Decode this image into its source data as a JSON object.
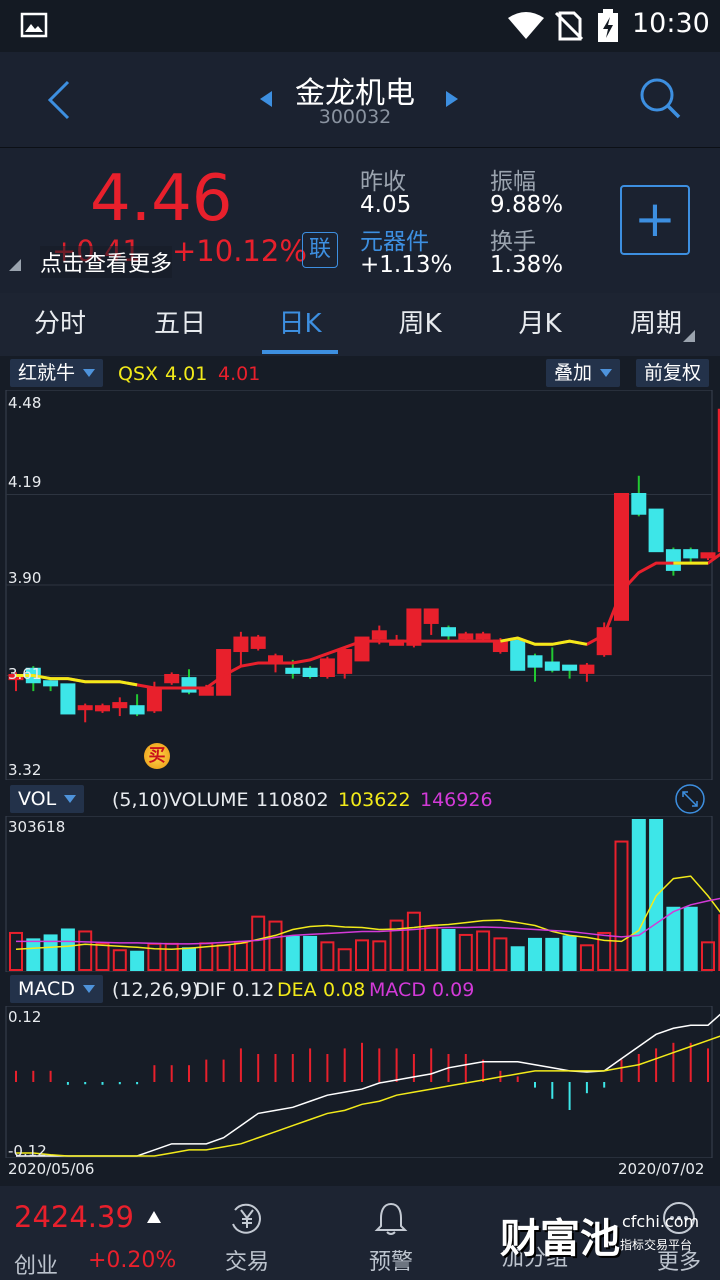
{
  "status": {
    "time": "10:30"
  },
  "header": {
    "title": "金龙机电",
    "code": "300032"
  },
  "quote": {
    "price": "4.46",
    "change": "+0.41",
    "change_pct": "+10.12%",
    "more_tip": "点击查看更多",
    "link_badge": "联",
    "prev_close_label": "昨收",
    "prev_close": "4.05",
    "sector_label": "元器件",
    "sector_change": "+1.13%",
    "amplitude_label": "振幅",
    "amplitude": "9.88%",
    "turnover_label": "换手",
    "turnover": "1.38%",
    "add_symbol": "+"
  },
  "tabs": [
    {
      "label": "分时"
    },
    {
      "label": "五日"
    },
    {
      "label": "日K"
    },
    {
      "label": "周K"
    },
    {
      "label": "月K"
    },
    {
      "label": "周期"
    }
  ],
  "kline_bar": {
    "indicator": "红就牛",
    "qsx_label": "QSX",
    "qsx_value1": "4.01",
    "qsx_value2": "4.01",
    "overlay": "叠加",
    "adjust": "前复权"
  },
  "price_axis": [
    "4.48",
    "4.19",
    "3.90",
    "3.61",
    "3.32"
  ],
  "buy_marker": "买",
  "vol_bar": {
    "name": "VOL",
    "params": "(5,10)",
    "volume_label": "VOLUME",
    "volume": "110802",
    "ma5": "103622",
    "ma10": "146926",
    "max": "303618"
  },
  "macd_bar": {
    "name": "MACD",
    "params": "(12,26,9)",
    "dif_label": "DIF",
    "dif": "0.12",
    "dea_label": "DEA",
    "dea": "0.08",
    "macd_label": "MACD",
    "macd": "0.09",
    "top": "0.12",
    "bottom": "-0.12"
  },
  "dates": {
    "start": "2020/05/06",
    "end": "2020/07/02"
  },
  "bottom": {
    "index_value": "2424.39",
    "index_name": "创业",
    "index_change": "+0.20%",
    "nav": [
      {
        "label": "交易",
        "icon": "yen-cycle-icon"
      },
      {
        "label": "预警",
        "icon": "bell-icon"
      },
      {
        "label": "加分组",
        "icon": "add-group-icon"
      },
      {
        "label": "更多",
        "icon": "more-icon"
      }
    ],
    "watermark_cn": "财富池",
    "watermark_site": "cfchi.com",
    "watermark_sub": "指标交易平台"
  },
  "colors": {
    "up": "#e8202c",
    "down": "#3de6e8",
    "accent": "#3d8fe0",
    "ma_yellow": "#f2ea1a",
    "ma_purple": "#d33ad8"
  },
  "chart_data": [
    {
      "type": "candlestick",
      "title": "",
      "x_range": [
        "2020/05/06",
        "2020/07/02"
      ],
      "ylim": [
        3.32,
        4.48
      ],
      "candles": [
        {
          "o": 3.6,
          "h": 3.62,
          "l": 3.56,
          "c": 3.61
        },
        {
          "o": 3.63,
          "h": 3.64,
          "l": 3.56,
          "c": 3.59
        },
        {
          "o": 3.59,
          "h": 3.6,
          "l": 3.56,
          "c": 3.58
        },
        {
          "o": 3.58,
          "h": 3.58,
          "l": 3.49,
          "c": 3.49
        },
        {
          "o": 3.51,
          "h": 3.52,
          "l": 3.46,
          "c": 3.51
        },
        {
          "o": 3.5,
          "h": 3.52,
          "l": 3.49,
          "c": 3.51
        },
        {
          "o": 3.51,
          "h": 3.54,
          "l": 3.48,
          "c": 3.52
        },
        {
          "o": 3.51,
          "h": 3.55,
          "l": 3.48,
          "c": 3.49
        },
        {
          "o": 3.5,
          "h": 3.59,
          "l": 3.49,
          "c": 3.57
        },
        {
          "o": 3.59,
          "h": 3.62,
          "l": 3.58,
          "c": 3.61
        },
        {
          "o": 3.6,
          "h": 3.63,
          "l": 3.55,
          "c": 3.56
        },
        {
          "o": 3.55,
          "h": 3.58,
          "l": 3.55,
          "c": 3.57
        },
        {
          "o": 3.55,
          "h": 3.69,
          "l": 3.55,
          "c": 3.69
        },
        {
          "o": 3.69,
          "h": 3.75,
          "l": 3.64,
          "c": 3.73
        },
        {
          "o": 3.7,
          "h": 3.74,
          "l": 3.69,
          "c": 3.73
        },
        {
          "o": 3.65,
          "h": 3.68,
          "l": 3.62,
          "c": 3.67
        },
        {
          "o": 3.63,
          "h": 3.66,
          "l": 3.6,
          "c": 3.62
        },
        {
          "o": 3.63,
          "h": 3.64,
          "l": 3.6,
          "c": 3.61
        },
        {
          "o": 3.61,
          "h": 3.67,
          "l": 3.6,
          "c": 3.66
        },
        {
          "o": 3.62,
          "h": 3.7,
          "l": 3.6,
          "c": 3.69
        },
        {
          "o": 3.66,
          "h": 3.73,
          "l": 3.66,
          "c": 3.73
        },
        {
          "o": 3.73,
          "h": 3.77,
          "l": 3.71,
          "c": 3.75
        },
        {
          "o": 3.71,
          "h": 3.74,
          "l": 3.71,
          "c": 3.72
        },
        {
          "o": 3.71,
          "h": 3.82,
          "l": 3.7,
          "c": 3.82
        },
        {
          "o": 3.78,
          "h": 3.82,
          "l": 3.74,
          "c": 3.82
        },
        {
          "o": 3.76,
          "h": 3.77,
          "l": 3.72,
          "c": 3.74
        },
        {
          "o": 3.73,
          "h": 3.75,
          "l": 3.72,
          "c": 3.74
        },
        {
          "o": 3.73,
          "h": 3.75,
          "l": 3.72,
          "c": 3.74
        },
        {
          "o": 3.69,
          "h": 3.73,
          "l": 3.68,
          "c": 3.72
        },
        {
          "o": 3.72,
          "h": 3.73,
          "l": 3.63,
          "c": 3.63
        },
        {
          "o": 3.67,
          "h": 3.68,
          "l": 3.59,
          "c": 3.64
        },
        {
          "o": 3.65,
          "h": 3.7,
          "l": 3.62,
          "c": 3.63
        },
        {
          "o": 3.64,
          "h": 3.64,
          "l": 3.6,
          "c": 3.63
        },
        {
          "o": 3.62,
          "h": 3.65,
          "l": 3.59,
          "c": 3.64
        },
        {
          "o": 3.68,
          "h": 3.78,
          "l": 3.67,
          "c": 3.76
        },
        {
          "o": 3.79,
          "h": 4.19,
          "l": 3.79,
          "c": 4.19
        },
        {
          "o": 4.19,
          "h": 4.25,
          "l": 4.12,
          "c": 4.13
        },
        {
          "o": 4.14,
          "h": 4.14,
          "l": 4.01,
          "c": 4.01
        },
        {
          "o": 4.01,
          "h": 4.02,
          "l": 3.93,
          "c": 3.95
        },
        {
          "o": 4.01,
          "h": 4.02,
          "l": 3.97,
          "c": 3.99
        },
        {
          "o": 3.99,
          "h": 4.0,
          "l": 3.98,
          "c": 4.0
        },
        {
          "o": 4.01,
          "h": 4.48,
          "l": 4.01,
          "c": 4.46
        }
      ],
      "series": [
        {
          "name": "QSX",
          "values": [
            3.61,
            3.61,
            3.6,
            3.6,
            3.59,
            3.59,
            3.59,
            3.58,
            3.57,
            3.57,
            3.57,
            3.57,
            3.61,
            3.64,
            3.65,
            3.65,
            3.65,
            3.66,
            3.68,
            3.7,
            3.72,
            3.72,
            3.72,
            3.72,
            3.72,
            3.72,
            3.72,
            3.72,
            3.72,
            3.73,
            3.71,
            3.71,
            3.72,
            3.71,
            3.74,
            3.88,
            3.94,
            3.97,
            3.97,
            3.97,
            3.97,
            4.01
          ]
        }
      ]
    },
    {
      "type": "bar",
      "title": "",
      "ylim": [
        0,
        303618
      ],
      "values": [
        75000,
        62000,
        70000,
        82000,
        78000,
        54000,
        40000,
        37000,
        53000,
        53000,
        44000,
        54000,
        50000,
        55000,
        108000,
        98000,
        67000,
        67000,
        56000,
        42000,
        60000,
        58000,
        100000,
        116000,
        86000,
        81000,
        71000,
        78000,
        64000,
        46000,
        63000,
        63000,
        68000,
        50000,
        75000,
        260000,
        303618,
        303618,
        126000,
        126000,
        56000,
        110802
      ],
      "series": [
        {
          "name": "MA5",
          "values": [
            42000,
            44000,
            46000,
            48000,
            52000,
            50000,
            48000,
            46000,
            43000,
            42000,
            44000,
            47000,
            50000,
            54000,
            62000,
            70000,
            82000,
            88000,
            90000,
            87000,
            86000,
            82000,
            83000,
            86000,
            90000,
            92000,
            96000,
            100000,
            101000,
            96000,
            90000,
            78000,
            70000,
            66000,
            60000,
            58000,
            80000,
            150000,
            185000,
            190000,
            150000,
            103622
          ]
        },
        {
          "name": "MA10",
          "values": [
            58000,
            58000,
            58000,
            58000,
            57000,
            56000,
            55000,
            55000,
            54000,
            53000,
            53000,
            54000,
            56000,
            58000,
            60000,
            66000,
            70000,
            72000,
            74000,
            76000,
            78000,
            78000,
            80000,
            82000,
            85000,
            86000,
            86000,
            87000,
            86000,
            84000,
            82000,
            80000,
            78000,
            74000,
            70000,
            67000,
            70000,
            94000,
            118000,
            132000,
            140000,
            146926
          ]
        }
      ]
    },
    {
      "type": "line",
      "title": "",
      "ylim": [
        -0.12,
        0.12
      ],
      "macd_bars": [
        0.02,
        0.02,
        0.02,
        -0.005,
        -0.004,
        -0.005,
        -0.004,
        -0.004,
        0.03,
        0.03,
        0.03,
        0.04,
        0.04,
        0.06,
        0.05,
        0.05,
        0.05,
        0.06,
        0.05,
        0.06,
        0.07,
        0.06,
        0.06,
        0.05,
        0.06,
        0.05,
        0.05,
        0.04,
        0.02,
        0.01,
        -0.01,
        -0.03,
        -0.05,
        -0.02,
        -0.01,
        0.04,
        0.05,
        0.06,
        0.07,
        0.07,
        0.06,
        0.09
      ],
      "series": [
        {
          "name": "DIF",
          "values": [
            -0.12,
            -0.12,
            -0.12,
            -0.12,
            -0.12,
            -0.12,
            -0.12,
            -0.12,
            -0.11,
            -0.1,
            -0.1,
            -0.1,
            -0.09,
            -0.07,
            -0.05,
            -0.045,
            -0.04,
            -0.03,
            -0.02,
            -0.015,
            -0.01,
            0.0,
            0.005,
            0.01,
            0.015,
            0.025,
            0.03,
            0.035,
            0.035,
            0.035,
            0.03,
            0.025,
            0.02,
            0.018,
            0.02,
            0.04,
            0.06,
            0.08,
            0.09,
            0.095,
            0.095,
            0.12
          ]
        },
        {
          "name": "DEA",
          "values": [
            -0.115,
            -0.115,
            -0.118,
            -0.12,
            -0.12,
            -0.12,
            -0.12,
            -0.12,
            -0.12,
            -0.115,
            -0.11,
            -0.11,
            -0.105,
            -0.1,
            -0.09,
            -0.08,
            -0.07,
            -0.06,
            -0.05,
            -0.045,
            -0.035,
            -0.03,
            -0.02,
            -0.015,
            -0.01,
            -0.005,
            0.0,
            0.005,
            0.01,
            0.015,
            0.02,
            0.02,
            0.02,
            0.02,
            0.02,
            0.025,
            0.03,
            0.04,
            0.05,
            0.06,
            0.07,
            0.08
          ]
        }
      ]
    }
  ]
}
